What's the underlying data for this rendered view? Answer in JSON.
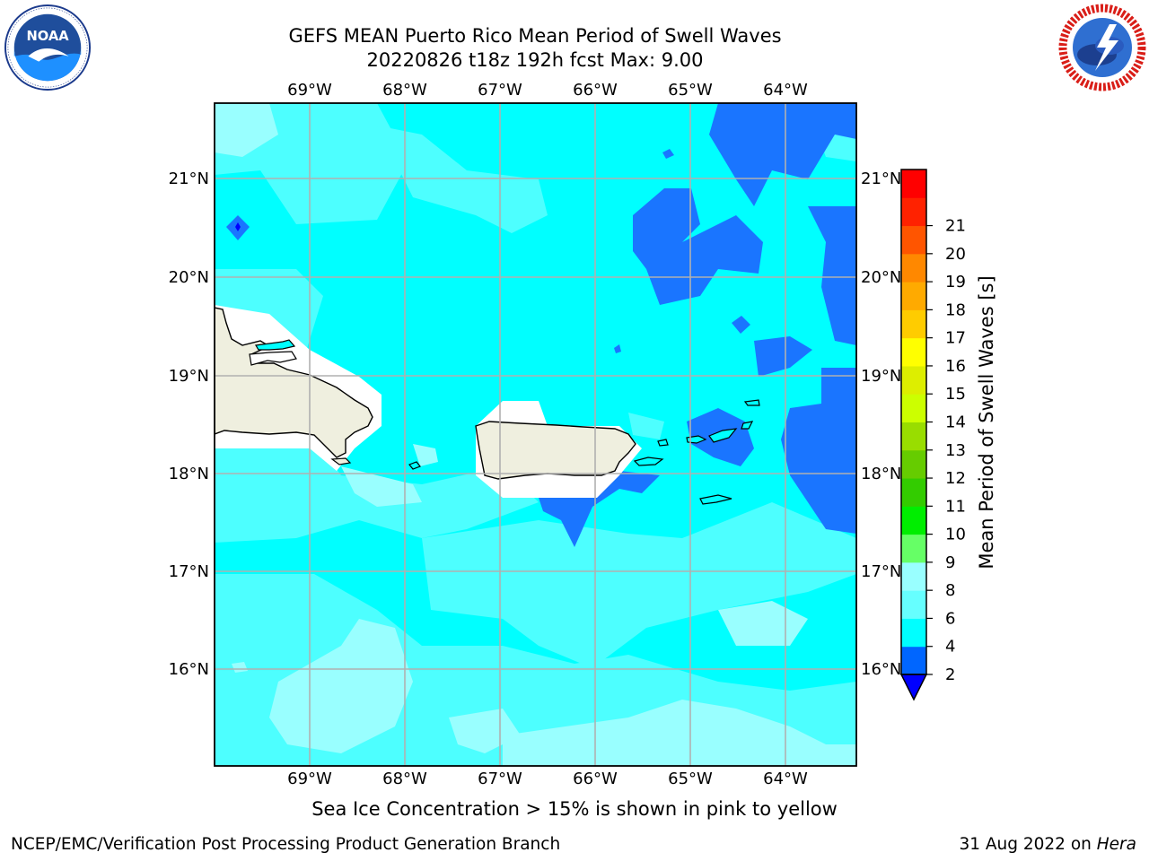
{
  "header": {
    "title_line1": "GEFS MEAN Puerto Rico Mean Period of Swell Waves",
    "title_line2": "20220826 t18z 192h fcst   Max: 9.00"
  },
  "logos": {
    "left": "noaa-logo",
    "left_text": "NOAA",
    "right": "nws-logo"
  },
  "map": {
    "lon_labels": [
      "69°W",
      "68°W",
      "67°W",
      "66°W",
      "65°W",
      "64°W"
    ],
    "lat_labels": [
      "21°N",
      "20°N",
      "19°N",
      "18°N",
      "17°N",
      "16°N"
    ],
    "lon_values": [
      -69,
      -68,
      -67,
      -66,
      -65,
      -64
    ],
    "lat_values": [
      21,
      20,
      19,
      18,
      17,
      16
    ],
    "extent": {
      "lon_min": -70,
      "lon_max": -63.25,
      "lat_min": 15,
      "lat_max": 21.75
    }
  },
  "colorbar": {
    "label": "Mean Period of Swell Waves [s]",
    "ticks": [
      "2",
      "4",
      "6",
      "8",
      "9",
      "10",
      "11",
      "12",
      "13",
      "14",
      "15",
      "16",
      "17",
      "18",
      "19",
      "20",
      "21"
    ],
    "colors": [
      "#0066ff",
      "#00ffff",
      "#66ffff",
      "#99ffff",
      "#66ff66",
      "#00ee00",
      "#33cc00",
      "#66cc00",
      "#99dd00",
      "#ccff00",
      "#ddee00",
      "#ffff00",
      "#ffcc00",
      "#ffaa00",
      "#ff8800",
      "#ff5500",
      "#ff2200",
      "#ff0000"
    ],
    "extend_color": "#0000ff"
  },
  "colors": {
    "band_2_4": "#1a75ff",
    "band_4_6": "#00ffff",
    "band_6_8": "#4dffff",
    "band_8_9": "#99ffff",
    "land": "#efefdf",
    "grid": "#b0b0b0"
  },
  "captions": {
    "sea_ice": "Sea Ice Concentration > 15% is shown in pink to yellow",
    "footer_left": "NCEP/EMC/Verification Post Processing Product Generation Branch",
    "footer_right_date": "31 Aug 2022 on ",
    "footer_right_host": "Hera"
  }
}
